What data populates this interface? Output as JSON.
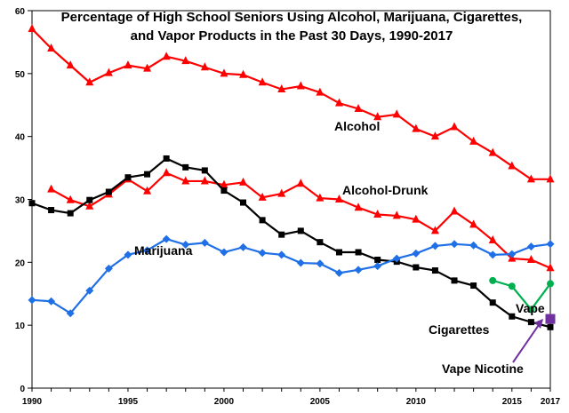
{
  "chart_data": {
    "type": "line",
    "title_line1": "Percentage of High School Seniors Using Alcohol, Marijuana, Cigarettes,",
    "title_line2": "and Vapor Products in the Past 30 Days, 1990-2017",
    "xlabel": "",
    "ylabel": "",
    "xlim": [
      1990,
      2017
    ],
    "ylim": [
      0,
      60
    ],
    "y_ticks": [
      0,
      10,
      20,
      30,
      40,
      50,
      60
    ],
    "x_tick_labels": [
      "1990",
      "1995",
      "2000",
      "2005",
      "2010",
      "2015",
      "2017"
    ],
    "x_tick_values": [
      1990,
      1995,
      2000,
      2005,
      2010,
      2015,
      2017
    ],
    "grid": false,
    "series": [
      {
        "name": "Alcohol",
        "color": "#ff0000",
        "marker": "triangle",
        "x": [
          1990,
          1991,
          1992,
          1993,
          1994,
          1995,
          1996,
          1997,
          1998,
          1999,
          2000,
          2001,
          2002,
          2003,
          2004,
          2005,
          2006,
          2007,
          2008,
          2009,
          2010,
          2011,
          2012,
          2013,
          2014,
          2015,
          2016,
          2017
        ],
        "values": [
          57.1,
          54.0,
          51.3,
          48.6,
          50.1,
          51.3,
          50.8,
          52.7,
          52.0,
          51.0,
          50.0,
          49.8,
          48.6,
          47.5,
          48.0,
          47.0,
          45.3,
          44.4,
          43.1,
          43.5,
          41.2,
          40.0,
          41.5,
          39.2,
          37.4,
          35.3,
          33.2,
          33.2
        ]
      },
      {
        "name": "Alcohol-Drunk",
        "color": "#ff0000",
        "marker": "triangle",
        "x": [
          1991,
          1992,
          1993,
          1994,
          1995,
          1996,
          1997,
          1998,
          1999,
          2000,
          2001,
          2002,
          2003,
          2004,
          2005,
          2006,
          2007,
          2008,
          2009,
          2010,
          2011,
          2012,
          2013,
          2014,
          2015,
          2016,
          2017
        ],
        "values": [
          31.6,
          29.9,
          28.9,
          30.8,
          33.2,
          31.3,
          34.2,
          32.9,
          32.9,
          32.3,
          32.7,
          30.3,
          30.9,
          32.5,
          30.2,
          30.0,
          28.7,
          27.6,
          27.4,
          26.8,
          25.0,
          28.1,
          26.0,
          23.5,
          20.6,
          20.4,
          19.1
        ]
      },
      {
        "name": "Cigarettes",
        "color": "#000000",
        "marker": "square",
        "x": [
          1990,
          1991,
          1992,
          1993,
          1994,
          1995,
          1996,
          1997,
          1998,
          1999,
          2000,
          2001,
          2002,
          2003,
          2004,
          2005,
          2006,
          2007,
          2008,
          2009,
          2010,
          2011,
          2012,
          2013,
          2014,
          2015,
          2016,
          2017
        ],
        "values": [
          29.4,
          28.3,
          27.8,
          29.9,
          31.2,
          33.5,
          34.0,
          36.5,
          35.1,
          34.6,
          31.4,
          29.5,
          26.7,
          24.4,
          25.0,
          23.2,
          21.6,
          21.6,
          20.4,
          20.1,
          19.2,
          18.7,
          17.1,
          16.3,
          13.6,
          11.4,
          10.5,
          9.7
        ]
      },
      {
        "name": "Marijuana",
        "color": "#1f6fe6",
        "marker": "diamond",
        "x": [
          1990,
          1991,
          1992,
          1993,
          1994,
          1995,
          1996,
          1997,
          1998,
          1999,
          2000,
          2001,
          2002,
          2003,
          2004,
          2005,
          2006,
          2007,
          2008,
          2009,
          2010,
          2011,
          2012,
          2013,
          2014,
          2015,
          2016,
          2017
        ],
        "values": [
          14.0,
          13.8,
          11.9,
          15.5,
          19.0,
          21.2,
          21.9,
          23.7,
          22.8,
          23.1,
          21.6,
          22.4,
          21.5,
          21.2,
          19.9,
          19.8,
          18.3,
          18.8,
          19.4,
          20.6,
          21.4,
          22.6,
          22.9,
          22.7,
          21.2,
          21.3,
          22.5,
          22.9
        ]
      },
      {
        "name": "Vape",
        "color": "#00b050",
        "marker": "circle",
        "x": [
          2014,
          2015,
          2016,
          2017
        ],
        "values": [
          17.1,
          16.2,
          12.5,
          16.6
        ]
      },
      {
        "name": "Vape Nicotine",
        "color": "#7030a0",
        "marker": "square",
        "x": [
          2017
        ],
        "values": [
          11.0
        ]
      }
    ],
    "labels": [
      {
        "text": "Alcohol",
        "series": "Alcohol",
        "color": "#ff0000"
      },
      {
        "text": "Alcohol-Drunk",
        "series": "Alcohol-Drunk",
        "color": "#ff0000"
      },
      {
        "text": "Marijuana",
        "series": "Marijuana",
        "color": "#1f6fe6"
      },
      {
        "text": "Cigarettes",
        "series": "Cigarettes",
        "color": "#000000"
      },
      {
        "text": "Vape",
        "series": "Vape",
        "color": "#00b050"
      },
      {
        "text": "Vape Nicotine",
        "series": "Vape Nicotine",
        "color": "#7030a0"
      }
    ]
  }
}
